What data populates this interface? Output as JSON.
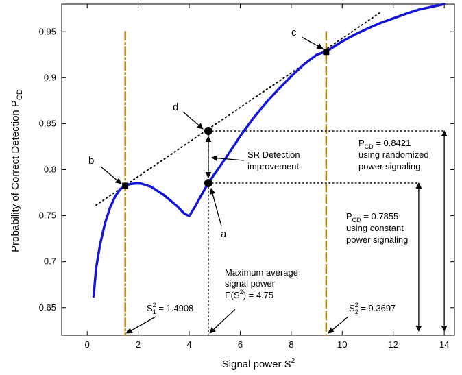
{
  "chart_data": {
    "type": "line",
    "title": "",
    "xlabel": "Signal power S",
    "xlabel_sup": "2",
    "ylabel": "Probability of Correct Detection  P",
    "ylabel_sub": "CD",
    "xlim": [
      -1,
      14.4
    ],
    "ylim": [
      0.62,
      0.98
    ],
    "xticks": [
      0,
      2,
      4,
      6,
      8,
      10,
      12,
      14
    ],
    "yticks": [
      0.65,
      0.7,
      0.75,
      0.8,
      0.85,
      0.9,
      0.95
    ],
    "grid": false,
    "series": [
      {
        "color": "#1515d8",
        "x": [
          0.25,
          0.35,
          0.5,
          0.7,
          0.9,
          1.1,
          1.3,
          1.49,
          1.7,
          1.9,
          2.1,
          2.5,
          3.0,
          3.5,
          3.8,
          4.0,
          4.2,
          4.5,
          4.75,
          5.0,
          5.5,
          6.0,
          6.5,
          7.0,
          7.5,
          8.0,
          8.5,
          9.0,
          9.37,
          10.0,
          10.5,
          11.0,
          11.5,
          12.0,
          12.5,
          13.0,
          13.5,
          14.0
        ],
        "y": [
          0.662,
          0.693,
          0.718,
          0.742,
          0.759,
          0.771,
          0.779,
          0.7825,
          0.7845,
          0.785,
          0.785,
          0.7815,
          0.7725,
          0.761,
          0.7525,
          0.7495,
          0.7585,
          0.7735,
          0.7855,
          0.7955,
          0.8155,
          0.8365,
          0.8555,
          0.8725,
          0.8875,
          0.9015,
          0.9145,
          0.925,
          0.9285,
          0.9395,
          0.947,
          0.9535,
          0.9595,
          0.9645,
          0.9695,
          0.974,
          0.977,
          0.98
        ]
      }
    ],
    "tangent_line": {
      "color": "#000000",
      "x": [
        0.35,
        11.5
      ],
      "y": [
        0.7615,
        0.971
      ]
    },
    "vertical_lines": [
      {
        "x": 1.4908,
        "y_top": 0.95,
        "style": "dash-dot",
        "color": "#b8860b"
      },
      {
        "x": 4.75,
        "y_top": 0.8421,
        "style": "dotted",
        "color": "#000000"
      },
      {
        "x": 9.3697,
        "y_top": 0.95,
        "style": "dashed",
        "color": "#b8860b"
      }
    ],
    "horizontal_lines": [
      {
        "y": 0.8421,
        "x_from": 4.75,
        "x_to": 14.0
      },
      {
        "y": 0.7855,
        "x_from": 4.75,
        "x_to": 13.0
      }
    ],
    "points": [
      {
        "label": "a",
        "x": 4.75,
        "y": 0.7855,
        "marker": "circle"
      },
      {
        "label": "b",
        "x": 1.4908,
        "y": 0.7825,
        "marker": "square"
      },
      {
        "label": "c",
        "x": 9.3697,
        "y": 0.928,
        "marker": "square"
      },
      {
        "label": "d",
        "x": 4.75,
        "y": 0.8421,
        "marker": "circle"
      }
    ],
    "annotations": {
      "sr_detection": [
        "SR Detection",
        "improvement"
      ],
      "max_avg_power": [
        "Maximum average",
        "signal power"
      ],
      "e_s2": "E(S",
      "e_s2_sup": "2",
      "e_s2_tail": ") = 4.75",
      "s1": {
        "base": "S",
        "sup": "2",
        "sub": "1",
        "value": " = 1.4908"
      },
      "s2": {
        "base": "S",
        "sup": "2",
        "sub": "2",
        "value": " = 9.3697"
      },
      "pcd_randomized": {
        "base": "P",
        "sub": "CD",
        "value": " = 0.8421",
        "line2": "using randomized",
        "line3": "power signaling"
      },
      "pcd_constant": {
        "base": "P",
        "sub": "CD",
        "value": " = 0.7855",
        "line2": "using constant",
        "line3": "power signaling"
      }
    }
  }
}
